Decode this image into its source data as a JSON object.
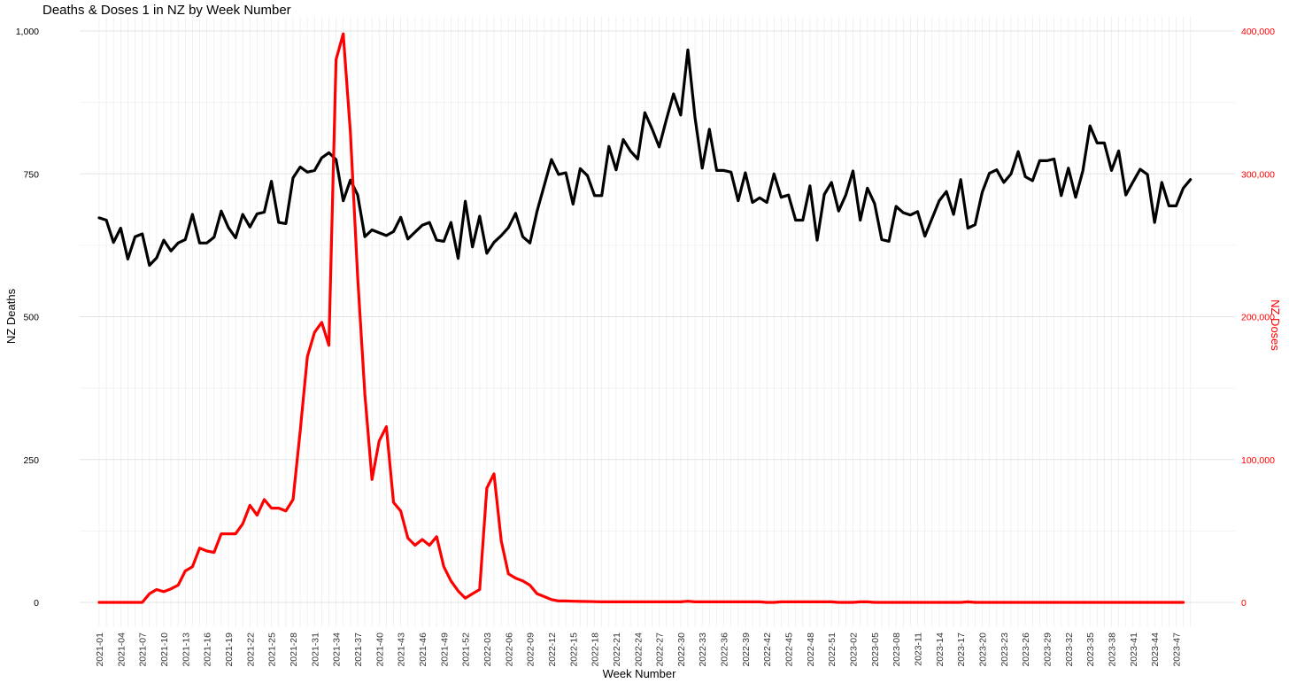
{
  "chart_data": {
    "type": "line",
    "title": "Deaths & Doses 1 in NZ by Week Number",
    "xlabel": "Week Number",
    "ylabel_left": "NZ Deaths",
    "ylabel_right": "NZ Doses",
    "ylim_left": [
      0,
      1000
    ],
    "ylim_right": [
      0,
      400000
    ],
    "yticks_left": [
      0,
      250,
      500,
      750,
      1000
    ],
    "ytick_labels_left": [
      "0",
      "250",
      "500",
      "750",
      "1,000"
    ],
    "yticks_right": [
      0,
      100000,
      200000,
      300000,
      400000
    ],
    "ytick_labels_right": [
      "0",
      "100,000",
      "200,000",
      "300,000",
      "400,000"
    ],
    "grid": true,
    "x_tick_labels": [
      "2021-01",
      "2021-04",
      "2021-07",
      "2021-10",
      "2021-13",
      "2021-16",
      "2021-19",
      "2021-22",
      "2021-25",
      "2021-28",
      "2021-31",
      "2021-34",
      "2021-37",
      "2021-40",
      "2021-43",
      "2021-46",
      "2021-49",
      "2021-52",
      "2022-03",
      "2022-06",
      "2022-09",
      "2022-12",
      "2022-15",
      "2022-18",
      "2022-21",
      "2022-24",
      "2022-27",
      "2022-30",
      "2022-33",
      "2022-36",
      "2022-39",
      "2022-42",
      "2022-45",
      "2022-48",
      "2022-51",
      "2023-02",
      "2023-05",
      "2023-08",
      "2023-11",
      "2023-14",
      "2023-17",
      "2023-20",
      "2023-23",
      "2023-26",
      "2023-29",
      "2023-32",
      "2023-35",
      "2023-38",
      "2023-41",
      "2023-44",
      "2023-47"
    ],
    "x_tick_index": [
      0,
      3,
      6,
      9,
      12,
      15,
      18,
      21,
      24,
      27,
      30,
      33,
      36,
      39,
      42,
      45,
      48,
      51,
      54,
      57,
      60,
      63,
      66,
      69,
      72,
      75,
      78,
      81,
      84,
      87,
      90,
      93,
      96,
      99,
      102,
      105,
      108,
      111,
      114,
      117,
      120,
      123,
      126,
      129,
      132,
      135,
      138,
      141,
      144,
      147,
      150
    ],
    "series": [
      {
        "name": "NZ Deaths",
        "axis": "left",
        "color": "#000000",
        "values": [
          673,
          669,
          630,
          655,
          601,
          640,
          645,
          590,
          603,
          634,
          615,
          629,
          635,
          679,
          629,
          629,
          639,
          685,
          656,
          638,
          679,
          657,
          680,
          683,
          737,
          665,
          663,
          743,
          762,
          753,
          756,
          778,
          787,
          775,
          703,
          739,
          713,
          640,
          652,
          647,
          642,
          649,
          674,
          636,
          648,
          660,
          665,
          634,
          632,
          665,
          602,
          702,
          622,
          676,
          611,
          630,
          642,
          656,
          681,
          640,
          629,
          685,
          730,
          775,
          749,
          752,
          697,
          759,
          747,
          712,
          712,
          798,
          757,
          810,
          790,
          776,
          857,
          829,
          797,
          845,
          890,
          853,
          967,
          848,
          760,
          828,
          756,
          756,
          753,
          703,
          752,
          700,
          708,
          700,
          750,
          709,
          713,
          669,
          669,
          729,
          634,
          714,
          735,
          685,
          713,
          755,
          669,
          725,
          698,
          635,
          632,
          693,
          682,
          678,
          684,
          641,
          672,
          703,
          719,
          679,
          740,
          655,
          661,
          718,
          751,
          757,
          735,
          750,
          789,
          745,
          738,
          773,
          773,
          776,
          712,
          760,
          709,
          755,
          834,
          804,
          804,
          756,
          790,
          713,
          736,
          758,
          749,
          665,
          735,
          694,
          694,
          725,
          740
        ]
      },
      {
        "name": "NZ Doses",
        "axis": "right",
        "color": "#ff0000",
        "values": [
          0,
          0,
          0,
          0,
          0,
          0,
          0,
          6000,
          9000,
          7500,
          9500,
          12000,
          22000,
          25000,
          38000,
          36000,
          35000,
          48000,
          48000,
          48000,
          55000,
          68000,
          61000,
          72000,
          66000,
          66000,
          64000,
          72000,
          120000,
          172000,
          189000,
          196000,
          180000,
          380000,
          398000,
          329000,
          228000,
          146000,
          86000,
          113000,
          123000,
          70000,
          64000,
          45000,
          40000,
          44000,
          40000,
          46000,
          25000,
          15000,
          8000,
          3000,
          6000,
          9000,
          80000,
          90000,
          43000,
          20000,
          17000,
          15000,
          12000,
          6000,
          4000,
          2000,
          1000,
          1000,
          800,
          700,
          600,
          500,
          400,
          400,
          400,
          400,
          400,
          400,
          400,
          400,
          400,
          400,
          400,
          400,
          800,
          400,
          400,
          400,
          400,
          400,
          400,
          400,
          400,
          400,
          400,
          0,
          0,
          400,
          400,
          400,
          400,
          400,
          400,
          400,
          400,
          0,
          0,
          0,
          400,
          400,
          0,
          0,
          0,
          0,
          0,
          0,
          0,
          0,
          0,
          0,
          0,
          0,
          0,
          400,
          0,
          0,
          0,
          0,
          0,
          0,
          0,
          0,
          0,
          0,
          0,
          0,
          0,
          0,
          0,
          0,
          0,
          0,
          0,
          0,
          0,
          0,
          0,
          0,
          0,
          0,
          0,
          0,
          0,
          0
        ]
      }
    ]
  }
}
